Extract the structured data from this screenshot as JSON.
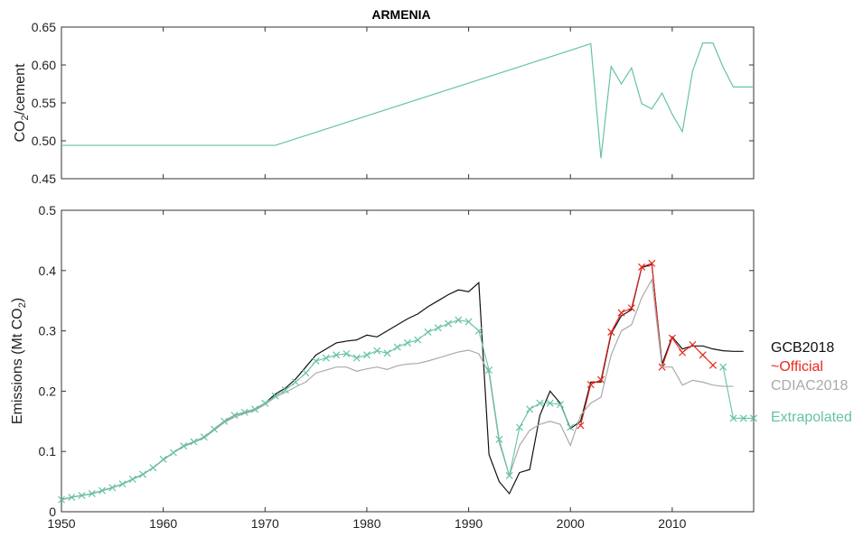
{
  "chart_data": [
    {
      "type": "line",
      "title": "ARMENIA",
      "ylabel": "CO2/cement",
      "ylabel_sub": "2",
      "xlim": [
        1950,
        2018
      ],
      "ylim": [
        0.45,
        0.65
      ],
      "yticks": [
        "0.45",
        "0.50",
        "0.55",
        "0.60",
        "0.65"
      ],
      "ytick_values": [
        0.45,
        0.5,
        0.55,
        0.6,
        0.65
      ],
      "grid": false,
      "series": [
        {
          "color": "#66c2a5",
          "x": [
            1950,
            1971,
            2002,
            2003,
            2004,
            2005,
            2006,
            2007,
            2008,
            2009,
            2010,
            2011,
            2012,
            2013,
            2014,
            2015,
            2016,
            2017,
            2018
          ],
          "y": [
            0.494,
            0.494,
            0.628,
            0.477,
            0.598,
            0.575,
            0.596,
            0.549,
            0.542,
            0.563,
            0.535,
            0.512,
            0.592,
            0.629,
            0.629,
            0.597,
            0.571,
            0.571,
            0.571
          ]
        }
      ]
    },
    {
      "type": "line",
      "ylabel": "Emissions (Mt CO2)",
      "xlim": [
        1950,
        2018
      ],
      "ylim": [
        0,
        0.5
      ],
      "xticks": [
        "1950",
        "1960",
        "1970",
        "1980",
        "1990",
        "2000",
        "2010"
      ],
      "xtick_values": [
        1950,
        1960,
        1970,
        1980,
        1990,
        2000,
        2010
      ],
      "yticks": [
        "0",
        "0.1",
        "0.2",
        "0.3",
        "0.4",
        "0.5"
      ],
      "ytick_values": [
        0,
        0.1,
        0.2,
        0.3,
        0.4,
        0.5
      ],
      "grid": false,
      "legend_placement": "right",
      "series": [
        {
          "name": "GCB2018",
          "color": "#111111",
          "marker": "none",
          "x": [
            1950,
            1951,
            1952,
            1953,
            1954,
            1955,
            1956,
            1957,
            1958,
            1959,
            1960,
            1961,
            1962,
            1963,
            1964,
            1965,
            1966,
            1967,
            1968,
            1969,
            1970,
            1971,
            1972,
            1973,
            1974,
            1975,
            1976,
            1977,
            1978,
            1979,
            1980,
            1981,
            1982,
            1983,
            1984,
            1985,
            1986,
            1987,
            1988,
            1989,
            1990,
            1991,
            1992,
            1993,
            1994,
            1995,
            1996,
            1997,
            1998,
            1999,
            2000,
            2001,
            2002,
            2003,
            2004,
            2005,
            2006,
            2007,
            2008,
            2009,
            2010,
            2011,
            2012,
            2013,
            2014,
            2015,
            2016,
            2017
          ],
          "y": [
            0.02,
            0.024,
            0.027,
            0.03,
            0.035,
            0.04,
            0.046,
            0.054,
            0.062,
            0.073,
            0.086,
            0.098,
            0.109,
            0.116,
            0.123,
            0.137,
            0.15,
            0.16,
            0.165,
            0.17,
            0.18,
            0.195,
            0.205,
            0.22,
            0.24,
            0.26,
            0.27,
            0.28,
            0.283,
            0.285,
            0.293,
            0.29,
            0.3,
            0.31,
            0.32,
            0.328,
            0.34,
            0.35,
            0.36,
            0.368,
            0.365,
            0.38,
            0.095,
            0.05,
            0.03,
            0.065,
            0.07,
            0.16,
            0.2,
            0.18,
            0.138,
            0.15,
            0.215,
            0.215,
            0.295,
            0.325,
            0.335,
            0.405,
            0.41,
            0.245,
            0.29,
            0.27,
            0.275,
            0.275,
            0.27,
            0.267,
            0.266,
            0.266
          ]
        },
        {
          "name": "~Official",
          "color": "#e8281e",
          "marker": "x",
          "x": [
            2001,
            2002,
            2003,
            2004,
            2005,
            2006,
            2007,
            2008,
            2009,
            2010,
            2011,
            2012,
            2013,
            2014
          ],
          "y": [
            0.143,
            0.211,
            0.219,
            0.298,
            0.33,
            0.338,
            0.406,
            0.412,
            0.24,
            0.288,
            0.264,
            0.277,
            0.26,
            0.243
          ]
        },
        {
          "name": "CDIAC2018",
          "color": "#aaaaaa",
          "marker": "none",
          "x": [
            1950,
            1951,
            1952,
            1953,
            1954,
            1955,
            1956,
            1957,
            1958,
            1959,
            1960,
            1961,
            1962,
            1963,
            1964,
            1965,
            1966,
            1967,
            1968,
            1969,
            1970,
            1971,
            1972,
            1973,
            1974,
            1975,
            1976,
            1977,
            1978,
            1979,
            1980,
            1981,
            1982,
            1983,
            1984,
            1985,
            1986,
            1987,
            1988,
            1989,
            1990,
            1991,
            1992,
            1993,
            1994,
            1995,
            1996,
            1997,
            1998,
            1999,
            2000,
            2001,
            2002,
            2003,
            2004,
            2005,
            2006,
            2007,
            2008,
            2009,
            2010,
            2011,
            2012,
            2013,
            2014,
            2015,
            2016
          ],
          "y": [
            0.02,
            0.024,
            0.027,
            0.03,
            0.035,
            0.04,
            0.046,
            0.054,
            0.062,
            0.073,
            0.086,
            0.098,
            0.108,
            0.115,
            0.122,
            0.135,
            0.148,
            0.157,
            0.163,
            0.168,
            0.178,
            0.19,
            0.198,
            0.207,
            0.215,
            0.23,
            0.235,
            0.24,
            0.24,
            0.233,
            0.237,
            0.24,
            0.236,
            0.242,
            0.245,
            0.246,
            0.25,
            0.255,
            0.26,
            0.265,
            0.268,
            0.262,
            0.23,
            0.115,
            0.06,
            0.11,
            0.135,
            0.145,
            0.15,
            0.145,
            0.11,
            0.16,
            0.18,
            0.19,
            0.26,
            0.3,
            0.31,
            0.355,
            0.385,
            0.24,
            0.24,
            0.21,
            0.218,
            0.215,
            0.21,
            0.208,
            0.208
          ]
        },
        {
          "name": "Extrapolated",
          "color": "#66c2a5",
          "marker": "x",
          "x": [
            1950,
            1951,
            1952,
            1953,
            1954,
            1955,
            1956,
            1957,
            1958,
            1959,
            1960,
            1961,
            1962,
            1963,
            1964,
            1965,
            1966,
            1967,
            1968,
            1969,
            1970,
            1971,
            1972,
            1973,
            1974,
            1975,
            1976,
            1977,
            1978,
            1979,
            1980,
            1981,
            1982,
            1983,
            1984,
            1985,
            1986,
            1987,
            1988,
            1989,
            1990,
            1991,
            1992,
            1993,
            1994,
            1995,
            1996,
            1997,
            1998,
            1999,
            2000,
            2015,
            2016,
            2017,
            2018
          ],
          "y": [
            0.02,
            0.024,
            0.027,
            0.03,
            0.035,
            0.04,
            0.046,
            0.054,
            0.062,
            0.073,
            0.087,
            0.098,
            0.109,
            0.116,
            0.124,
            0.137,
            0.15,
            0.16,
            0.165,
            0.17,
            0.18,
            0.192,
            0.202,
            0.215,
            0.23,
            0.25,
            0.255,
            0.26,
            0.262,
            0.255,
            0.26,
            0.267,
            0.263,
            0.273,
            0.28,
            0.285,
            0.298,
            0.305,
            0.312,
            0.318,
            0.315,
            0.3,
            0.235,
            0.12,
            0.06,
            0.14,
            0.17,
            0.18,
            0.18,
            0.178,
            0.14,
            0.24,
            0.155,
            0.155,
            0.155
          ]
        }
      ]
    }
  ]
}
